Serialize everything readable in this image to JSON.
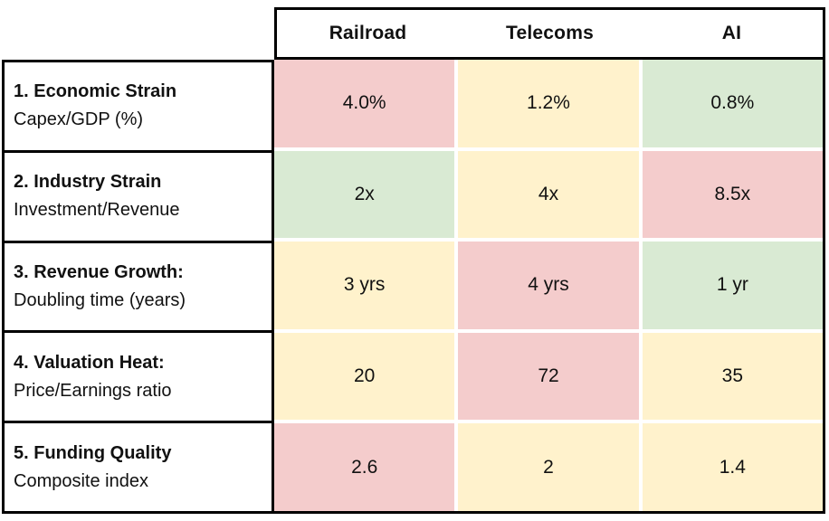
{
  "palette": {
    "red": "#f4cccc",
    "yellow": "#fff2cc",
    "green": "#d9ead3",
    "border": "#000000",
    "background": "#ffffff",
    "text": "#111111"
  },
  "chart_data": {
    "type": "table",
    "columns": [
      "Railroad",
      "Telecoms",
      "AI"
    ],
    "rows": [
      {
        "label": "1. Economic Strain",
        "sublabel": "Capex/GDP (%)",
        "cells": [
          {
            "value": "4.0%",
            "heat": "red"
          },
          {
            "value": "1.2%",
            "heat": "yellow"
          },
          {
            "value": "0.8%",
            "heat": "green"
          }
        ]
      },
      {
        "label": "2. Industry Strain",
        "sublabel": "Investment/Revenue",
        "cells": [
          {
            "value": "2x",
            "heat": "green"
          },
          {
            "value": "4x",
            "heat": "yellow"
          },
          {
            "value": "8.5x",
            "heat": "red"
          }
        ]
      },
      {
        "label": "3. Revenue Growth:",
        "sublabel": "Doubling time (years)",
        "cells": [
          {
            "value": "3 yrs",
            "heat": "yellow"
          },
          {
            "value": "4 yrs",
            "heat": "red"
          },
          {
            "value": "1 yr",
            "heat": "green"
          }
        ]
      },
      {
        "label": "4. Valuation Heat:",
        "sublabel": "Price/Earnings ratio",
        "cells": [
          {
            "value": "20",
            "heat": "yellow"
          },
          {
            "value": "72",
            "heat": "red"
          },
          {
            "value": "35",
            "heat": "yellow"
          }
        ]
      },
      {
        "label": "5. Funding Quality",
        "sublabel": "Composite index",
        "cells": [
          {
            "value": "2.6",
            "heat": "red"
          },
          {
            "value": "2",
            "heat": "yellow"
          },
          {
            "value": "1.4",
            "heat": "yellow"
          }
        ]
      }
    ]
  }
}
